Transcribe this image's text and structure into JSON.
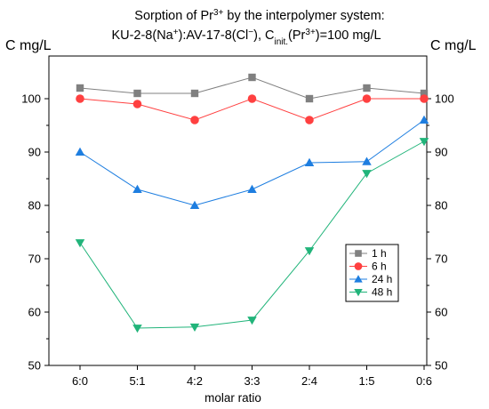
{
  "chart_data": {
    "type": "line",
    "title_line1": {
      "parts": [
        {
          "text": "Sorption of Pr",
          "style": "normal"
        },
        {
          "text": "3+",
          "style": "sup"
        },
        {
          "text": " by the interpolymer system:",
          "style": "normal"
        }
      ]
    },
    "title_line2": {
      "parts": [
        {
          "text": "KU-2-8(Na",
          "style": "normal"
        },
        {
          "text": "+",
          "style": "sup"
        },
        {
          "text": "):AV-17-8(Cl",
          "style": "normal"
        },
        {
          "text": "−",
          "style": "sup"
        },
        {
          "text": "), C",
          "style": "normal"
        },
        {
          "text": "init.",
          "style": "sub"
        },
        {
          "text": "(Pr",
          "style": "normal"
        },
        {
          "text": "3+",
          "style": "sup"
        },
        {
          "text": ")=100 mg/L",
          "style": "normal"
        }
      ]
    },
    "ylabel_left": "C mg/L",
    "ylabel_right": "C mg/L",
    "xlabel": "molar ratio",
    "categories": [
      "6:0",
      "5:1",
      "4:2",
      "3:3",
      "2:4",
      "1:5",
      "0:6"
    ],
    "ylim": [
      50,
      108
    ],
    "yticks": [
      50,
      60,
      70,
      80,
      90,
      100
    ],
    "series": [
      {
        "name": "1 h",
        "color": "#808080",
        "marker": "square",
        "values": [
          102,
          101,
          101,
          104,
          100,
          102,
          101
        ]
      },
      {
        "name": "6 h",
        "color": "#ff4040",
        "marker": "circle",
        "values": [
          100,
          99,
          96,
          100,
          96,
          100,
          100
        ]
      },
      {
        "name": "24 h",
        "color": "#1e7ee0",
        "marker": "triangle-up",
        "values": [
          90,
          83,
          80,
          83,
          88,
          88.2,
          96
        ]
      },
      {
        "name": "48 h",
        "color": "#21b47a",
        "marker": "triangle-down",
        "values": [
          73,
          57,
          57.2,
          58.5,
          71.5,
          86,
          92
        ]
      }
    ],
    "legend_position": "right-middle",
    "grid": false
  }
}
